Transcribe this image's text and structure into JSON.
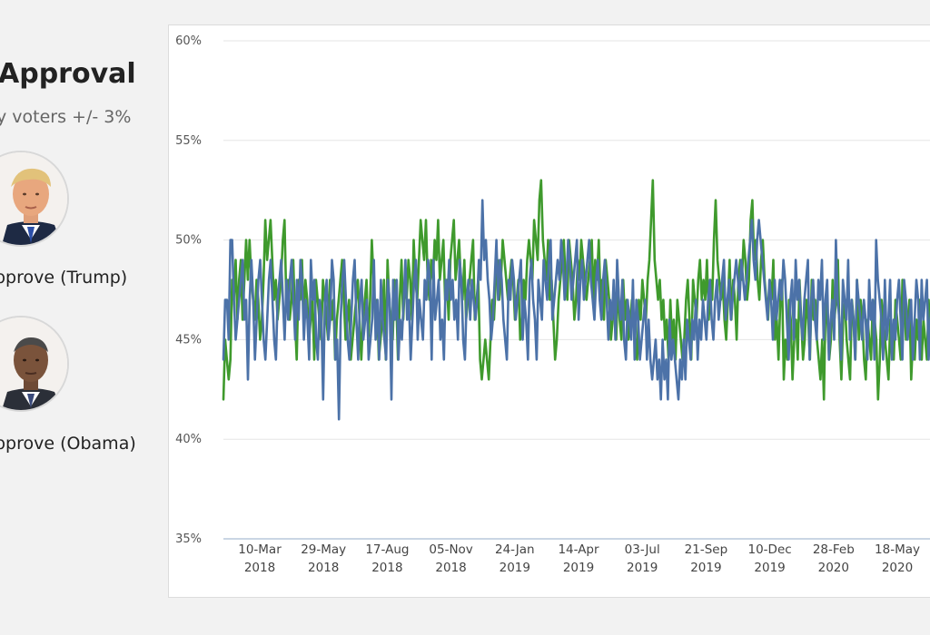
{
  "sidebar": {
    "title": "Approval",
    "subtitle": "y voters +/- 3%",
    "legend": [
      {
        "label": "pprove (Trump)",
        "icon": "trump-portrait-icon"
      },
      {
        "label": "pprove (Obama)",
        "icon": "obama-portrait-icon"
      }
    ]
  },
  "colors": {
    "trump": "#4c72a8",
    "obama": "#3f9a2d",
    "axis": "#b9c8dc",
    "grid": "#e6e6e6"
  },
  "chart_data": {
    "type": "line",
    "title": "",
    "ylim": [
      35,
      60
    ],
    "y_tick_labels": [
      "60%",
      "55%",
      "50%",
      "45%",
      "40%",
      "35%"
    ],
    "y_ticks": [
      60,
      55,
      50,
      45,
      40,
      35
    ],
    "x_tick_labels": [
      [
        "10-Mar",
        "2018"
      ],
      [
        "29-May",
        "2018"
      ],
      [
        "17-Aug",
        "2018"
      ],
      [
        "05-Nov",
        "2018"
      ],
      [
        "24-Jan",
        "2019"
      ],
      [
        "14-Apr",
        "2019"
      ],
      [
        "03-Jul",
        "2019"
      ],
      [
        "21-Sep",
        "2019"
      ],
      [
        "10-Dec",
        "2019"
      ],
      [
        "28-Feb",
        "2020"
      ],
      [
        "18-May",
        "2020"
      ]
    ],
    "grid": true,
    "series": [
      {
        "name": "pprove (Trump)",
        "color": "#4c72a8",
        "values": [
          44,
          47,
          47,
          45,
          50,
          50,
          47,
          45,
          46,
          47,
          48,
          49,
          46,
          47,
          43,
          47,
          49,
          47,
          44,
          46,
          48,
          49,
          47,
          45,
          44,
          46,
          48,
          49,
          47,
          45,
          44,
          47,
          48,
          49,
          47,
          45,
          48,
          46,
          48,
          49,
          47,
          45,
          48,
          46,
          49,
          48,
          45,
          47,
          46,
          44,
          49,
          47,
          48,
          45,
          44,
          47,
          46,
          42,
          47,
          48,
          45,
          46,
          49,
          48,
          44,
          45,
          41,
          46,
          48,
          49,
          47,
          45,
          44,
          46,
          48,
          49,
          46,
          44,
          47,
          48,
          45,
          46,
          47,
          44,
          45,
          46,
          49,
          45,
          47,
          44,
          48,
          46,
          45,
          44,
          48,
          47,
          42,
          48,
          46,
          48,
          44,
          46,
          45,
          47,
          49,
          46,
          47,
          44,
          46,
          48,
          49,
          45,
          47,
          46,
          45,
          48,
          47,
          49,
          48,
          44,
          49,
          46,
          47,
          48,
          45,
          46,
          44,
          48,
          47,
          49,
          47,
          48,
          46,
          47,
          45,
          49,
          48,
          45,
          44,
          47,
          48,
          46,
          48,
          47,
          46,
          47,
          49,
          48,
          52,
          49,
          50,
          48,
          47,
          45,
          46,
          48,
          50,
          47,
          49,
          48,
          46,
          45,
          44,
          48,
          47,
          49,
          48,
          46,
          47,
          48,
          49,
          45,
          47,
          46,
          44,
          48,
          49,
          47,
          46,
          44,
          48,
          47,
          46,
          49,
          48,
          47,
          49,
          50,
          46,
          47,
          48,
          49,
          48,
          50,
          49,
          47,
          48,
          50,
          49,
          47,
          48,
          49,
          50,
          46,
          48,
          49,
          47,
          48,
          49,
          50,
          48,
          47,
          46,
          48,
          49,
          47,
          46,
          48,
          49,
          47,
          45,
          47,
          46,
          48,
          45,
          49,
          47,
          46,
          48,
          45,
          44,
          47,
          46,
          45,
          48,
          44,
          47,
          46,
          44,
          45,
          46,
          47,
          44,
          46,
          44,
          43,
          44,
          45,
          43,
          44,
          42,
          45,
          43,
          44,
          42,
          46,
          44,
          45,
          44,
          43,
          42,
          44,
          43,
          45,
          43,
          46,
          45,
          44,
          46,
          45,
          47,
          44,
          46,
          45,
          47,
          46,
          45,
          47,
          48,
          46,
          45,
          47,
          48,
          46,
          47,
          48,
          49,
          46,
          47,
          48,
          46,
          47,
          48,
          49,
          48,
          47,
          49,
          48,
          47,
          48,
          49,
          50,
          51,
          49,
          48,
          50,
          51,
          50,
          49,
          48,
          47,
          46,
          48,
          47,
          45,
          48,
          46,
          47,
          48,
          47,
          49,
          48,
          46,
          44,
          47,
          48,
          45,
          49,
          47,
          48,
          46,
          45,
          47,
          48,
          49,
          44,
          47,
          48,
          46,
          45,
          48,
          47,
          49,
          45,
          47,
          48,
          44,
          46,
          47,
          45,
          50,
          47,
          46,
          44,
          48,
          47,
          46,
          49,
          45,
          47,
          46,
          44,
          48,
          47,
          46,
          45,
          47,
          46,
          44,
          48,
          46,
          47,
          44,
          50,
          48,
          47,
          46,
          44,
          48,
          45,
          46,
          48,
          44,
          46,
          45,
          47,
          48,
          46,
          44,
          48,
          47,
          45,
          46,
          47,
          44,
          46,
          48,
          47,
          44,
          48,
          46,
          47,
          48,
          44,
          46,
          47,
          45,
          48,
          44,
          46,
          47
        ]
      },
      {
        "name": "pprove (Obama)",
        "color": "#3f9a2d",
        "values": [
          42,
          45,
          44,
          43,
          44,
          48,
          47,
          49,
          46,
          48,
          49,
          46,
          48,
          50,
          48,
          50,
          48,
          47,
          46,
          48,
          47,
          45,
          46,
          48,
          51,
          49,
          50,
          51,
          49,
          47,
          48,
          46,
          47,
          48,
          50,
          51,
          47,
          48,
          46,
          47,
          49,
          46,
          44,
          48,
          47,
          49,
          46,
          48,
          47,
          45,
          46,
          47,
          44,
          48,
          47,
          46,
          45,
          48,
          47,
          46,
          45,
          48,
          46,
          47,
          44,
          46,
          47,
          48,
          49,
          47,
          45,
          46,
          47,
          44,
          45,
          46,
          47,
          48,
          46,
          44,
          46,
          47,
          48,
          45,
          47,
          50,
          48,
          46,
          47,
          44,
          45,
          46,
          48,
          44,
          49,
          47,
          46,
          45,
          48,
          47,
          44,
          47,
          49,
          46,
          48,
          47,
          49,
          48,
          46,
          50,
          48,
          47,
          49,
          51,
          50,
          49,
          51,
          48,
          47,
          49,
          48,
          50,
          49,
          51,
          48,
          49,
          50,
          47,
          48,
          46,
          49,
          50,
          51,
          48,
          49,
          50,
          48,
          47,
          49,
          46,
          47,
          48,
          49,
          50,
          46,
          47,
          48,
          44,
          43,
          44,
          45,
          44,
          43,
          45,
          47,
          46,
          48,
          49,
          47,
          48,
          50,
          49,
          48,
          47,
          48,
          49,
          48,
          46,
          47,
          48,
          45,
          46,
          48,
          47,
          49,
          50,
          49,
          48,
          51,
          50,
          49,
          52,
          53,
          50,
          49,
          48,
          50,
          47,
          48,
          46,
          44,
          45,
          47,
          48,
          49,
          50,
          48,
          47,
          50,
          49,
          48,
          46,
          47,
          49,
          48,
          50,
          49,
          48,
          47,
          48,
          49,
          50,
          47,
          49,
          48,
          50,
          47,
          48,
          46,
          49,
          48,
          47,
          45,
          46,
          47,
          45,
          48,
          46,
          45,
          48,
          46,
          47,
          45,
          46,
          47,
          46,
          45,
          44,
          47,
          46,
          48,
          47,
          46,
          48,
          49,
          51,
          53,
          49,
          48,
          47,
          48,
          46,
          47,
          45,
          46,
          44,
          47,
          45,
          46,
          44,
          47,
          46,
          45,
          44,
          45,
          47,
          48,
          46,
          44,
          48,
          47,
          46,
          48,
          49,
          47,
          48,
          47,
          49,
          46,
          48,
          47,
          50,
          52,
          49,
          48,
          47,
          48,
          46,
          45,
          47,
          49,
          46,
          48,
          47,
          45,
          48,
          49,
          48,
          50,
          49,
          47,
          48,
          51,
          52,
          49,
          50,
          48,
          47,
          49,
          50,
          48,
          47,
          46,
          48,
          47,
          49,
          45,
          46,
          44,
          47,
          48,
          43,
          45,
          44,
          47,
          46,
          43,
          45,
          46,
          44,
          48,
          46,
          44,
          45,
          47,
          46,
          44,
          48,
          46,
          47,
          45,
          44,
          43,
          45,
          42,
          47,
          46,
          44,
          45,
          48,
          46,
          47,
          49,
          45,
          43,
          46,
          47,
          45,
          44,
          43,
          47,
          46,
          44,
          48,
          45,
          47,
          46,
          44,
          43,
          46,
          45,
          44,
          47,
          46,
          45,
          42,
          44,
          47,
          46,
          45,
          44,
          43,
          46,
          45,
          44,
          47,
          46,
          45,
          44,
          48,
          47,
          45,
          46,
          47,
          43,
          45,
          44,
          46,
          45,
          47,
          44,
          46,
          45,
          44,
          47,
          45,
          43,
          46,
          45,
          44,
          47,
          46
        ]
      }
    ]
  }
}
